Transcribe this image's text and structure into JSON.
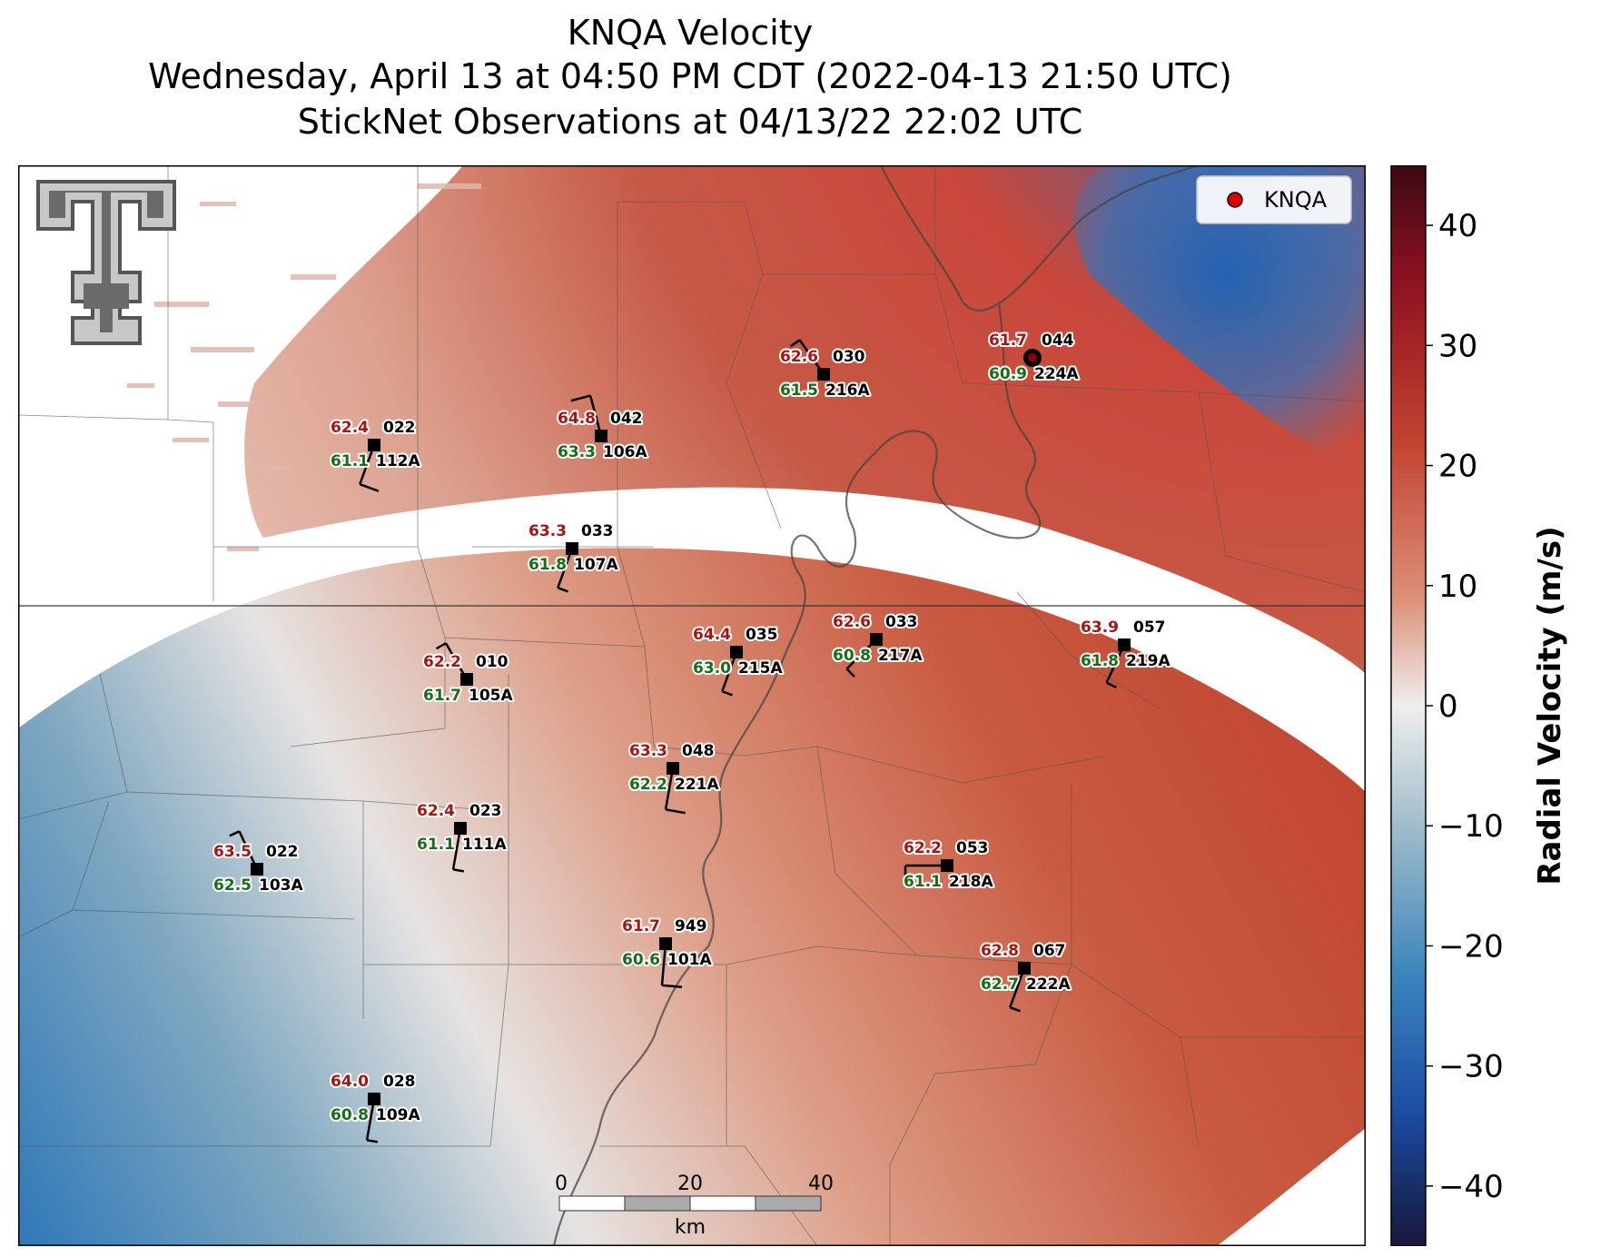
{
  "title": {
    "line1": "KNQA Velocity",
    "line2": "Wednesday, April 13 at 04:50 PM CDT (2022-04-13 21:50 UTC)",
    "line3": "StickNet Observations at 04/13/22 22:02 UTC"
  },
  "legend": {
    "label": "KNQA",
    "marker_color": "#e00000"
  },
  "colorbar": {
    "label": "Radial Velocity (m/s)",
    "ticks": [
      "40",
      "30",
      "20",
      "10",
      "0",
      "−10",
      "−20",
      "−30",
      "−40"
    ],
    "range": [
      -45,
      45
    ]
  },
  "scalebar": {
    "ticks": [
      "0",
      "20",
      "40"
    ],
    "unit": "km"
  },
  "logo": "texas-tech-double-t-logo",
  "stations": [
    {
      "id": "022",
      "temp": "62.4",
      "dew": "61.1",
      "probe": "112A",
      "wind_dir": 200,
      "wind_kt": 10
    },
    {
      "id": "042",
      "temp": "64.8",
      "dew": "63.3",
      "probe": "106A",
      "wind_dir": 345,
      "wind_kt": 10
    },
    {
      "id": "033",
      "temp": "63.3",
      "dew": "61.8",
      "probe": "107A",
      "wind_dir": 200,
      "wind_kt": 5
    },
    {
      "id": "030",
      "temp": "62.6",
      "dew": "61.5",
      "probe": "216A",
      "wind_dir": 325,
      "wind_kt": 5
    },
    {
      "id": "044",
      "temp": "61.7",
      "dew": "60.9",
      "probe": "224A",
      "wind_dir": 0,
      "wind_kt": 0
    },
    {
      "id": "010",
      "temp": "62.2",
      "dew": "61.7",
      "probe": "105A",
      "wind_dir": 330,
      "wind_kt": 5
    },
    {
      "id": "035",
      "temp": "64.4",
      "dew": "63.0",
      "probe": "215A",
      "wind_dir": 200,
      "wind_kt": 5
    },
    {
      "id": "033",
      "temp": "62.6",
      "dew": "60.8",
      "probe": "217A",
      "wind_dir": 225,
      "wind_kt": 5
    },
    {
      "id": "057",
      "temp": "63.9",
      "dew": "61.8",
      "probe": "219A",
      "wind_dir": 205,
      "wind_kt": 5
    },
    {
      "id": "048",
      "temp": "63.3",
      "dew": "62.2",
      "probe": "221A",
      "wind_dir": 190,
      "wind_kt": 10
    },
    {
      "id": "023",
      "temp": "62.4",
      "dew": "61.1",
      "probe": "111A",
      "wind_dir": 190,
      "wind_kt": 5
    },
    {
      "id": "022",
      "temp": "63.5",
      "dew": "62.5",
      "probe": "103A",
      "wind_dir": 335,
      "wind_kt": 5
    },
    {
      "id": "053",
      "temp": "62.2",
      "dew": "61.1",
      "probe": "218A",
      "wind_dir": 270,
      "wind_kt": 5
    },
    {
      "id": "949",
      "temp": "61.7",
      "dew": "60.6",
      "probe": "101A",
      "wind_dir": 185,
      "wind_kt": 10
    },
    {
      "id": "067",
      "temp": "62.8",
      "dew": "62.7",
      "probe": "222A",
      "wind_dir": 200,
      "wind_kt": 5
    },
    {
      "id": "028",
      "temp": "64.0",
      "dew": "60.8",
      "probe": "109A",
      "wind_dir": 190,
      "wind_kt": 5
    }
  ]
}
